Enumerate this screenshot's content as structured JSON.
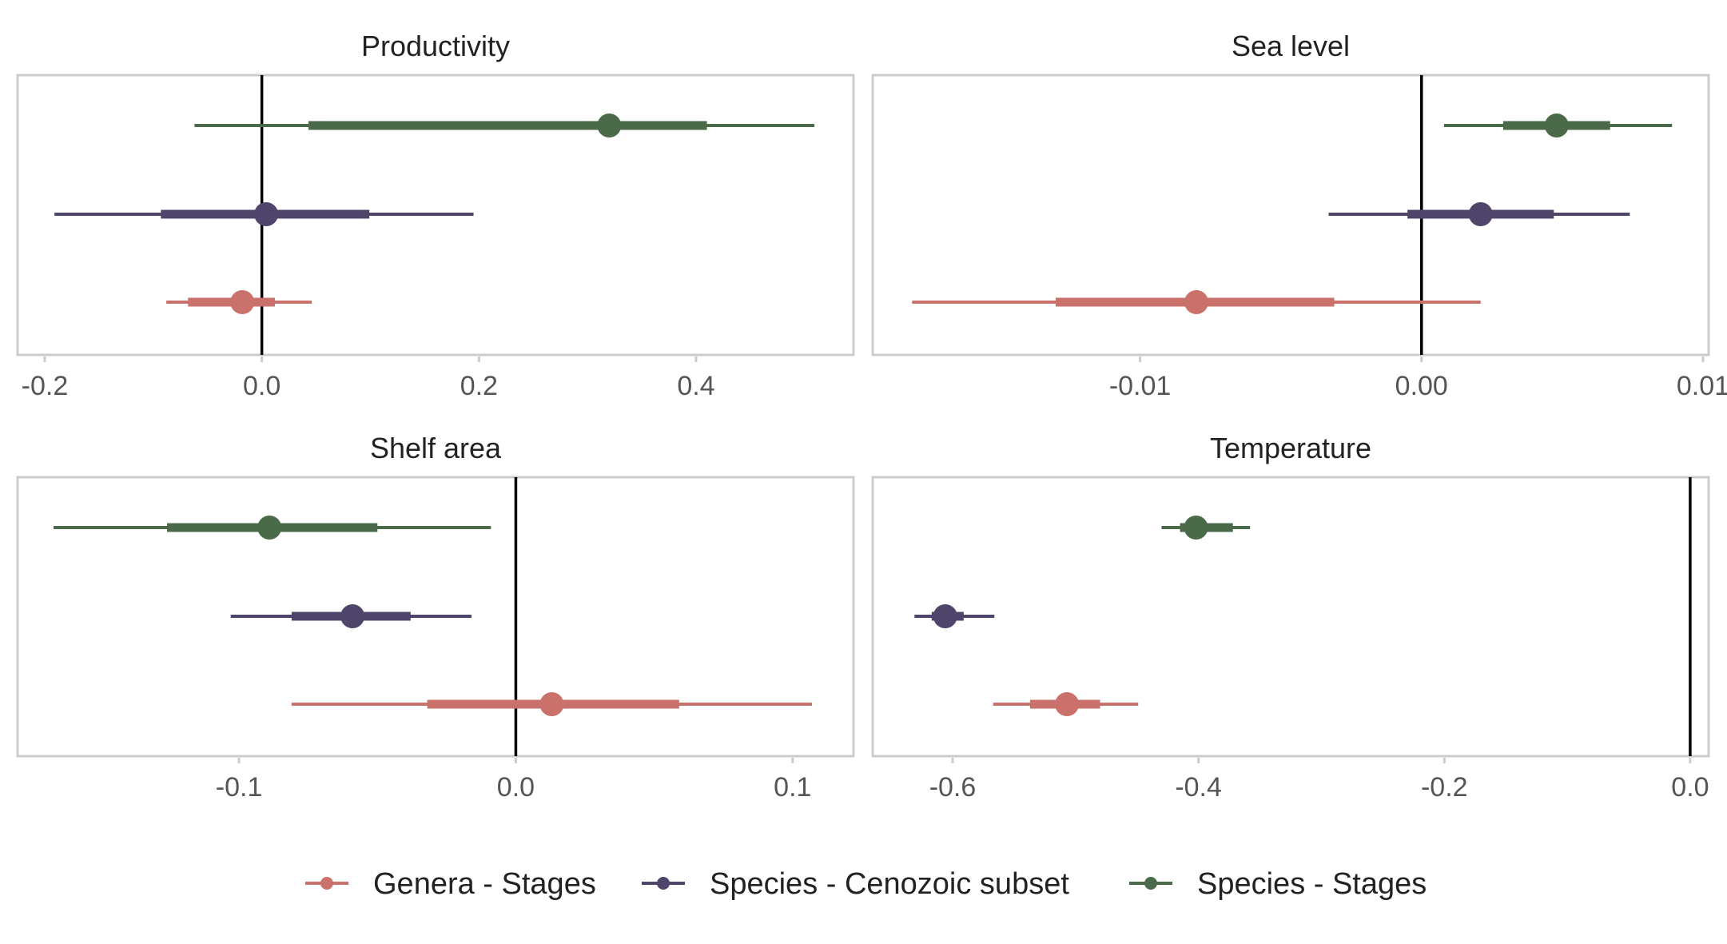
{
  "chart_data": {
    "type": "interval",
    "legend": {
      "position": "bottom",
      "entries": [
        {
          "name": "Genera - Stages",
          "color": "#c9716a"
        },
        {
          "name": "Species - Cenozoic subset",
          "color": "#4f4469"
        },
        {
          "name": "Species - Stages",
          "color": "#4a6a49"
        }
      ]
    },
    "panels": [
      {
        "title": "Productivity",
        "xlim": [
          -0.225,
          0.545
        ],
        "ticks": [
          -0.2,
          0.0,
          0.2,
          0.4
        ],
        "tick_labels": [
          "-0.2",
          "0.0",
          "0.2",
          "0.4"
        ],
        "series": [
          {
            "name": "Species - Stages",
            "estimate": 0.32,
            "inner": [
              0.043,
              0.41
            ],
            "outer": [
              -0.062,
              0.509
            ]
          },
          {
            "name": "Species - Cenozoic subset",
            "estimate": 0.004,
            "inner": [
              -0.093,
              0.099
            ],
            "outer": [
              -0.191,
              0.195
            ]
          },
          {
            "name": "Genera - Stages",
            "estimate": -0.018,
            "inner": [
              -0.068,
              0.012
            ],
            "outer": [
              -0.088,
              0.046
            ]
          }
        ]
      },
      {
        "title": "Sea level",
        "xlim": [
          -0.0195,
          0.0102
        ],
        "ticks": [
          -0.01,
          0.0,
          0.01
        ],
        "tick_labels": [
          "-0.01",
          "0.00",
          "0.01"
        ],
        "series": [
          {
            "name": "Species - Stages",
            "estimate": 0.0048,
            "inner": [
              0.0029,
              0.0067
            ],
            "outer": [
              0.0008,
              0.0089
            ]
          },
          {
            "name": "Species - Cenozoic subset",
            "estimate": 0.0021,
            "inner": [
              -0.0005,
              0.0047
            ],
            "outer": [
              -0.0033,
              0.0074
            ]
          },
          {
            "name": "Genera - Stages",
            "estimate": -0.008,
            "inner": [
              -0.013,
              -0.0031
            ],
            "outer": [
              -0.0181,
              0.0021
            ]
          }
        ]
      },
      {
        "title": "Shelf area",
        "xlim": [
          -0.18,
          0.122
        ],
        "ticks": [
          -0.1,
          0.0,
          0.1
        ],
        "tick_labels": [
          "-0.1",
          "0.0",
          "0.1"
        ],
        "series": [
          {
            "name": "Species - Stages",
            "estimate": -0.089,
            "inner": [
              -0.126,
              -0.05
            ],
            "outer": [
              -0.167,
              -0.009
            ]
          },
          {
            "name": "Species - Cenozoic subset",
            "estimate": -0.059,
            "inner": [
              -0.081,
              -0.038
            ],
            "outer": [
              -0.103,
              -0.016
            ]
          },
          {
            "name": "Genera - Stages",
            "estimate": 0.013,
            "inner": [
              -0.032,
              0.059
            ],
            "outer": [
              -0.081,
              0.107
            ]
          }
        ]
      },
      {
        "title": "Temperature",
        "xlim": [
          -0.665,
          0.015
        ],
        "ticks": [
          -0.6,
          -0.4,
          -0.2,
          0.0
        ],
        "tick_labels": [
          "-0.6",
          "-0.4",
          "-0.2",
          "0.0"
        ],
        "series": [
          {
            "name": "Species - Stages",
            "estimate": -0.402,
            "inner": [
              -0.415,
              -0.372
            ],
            "outer": [
              -0.43,
              -0.358
            ]
          },
          {
            "name": "Species - Cenozoic subset",
            "estimate": -0.606,
            "inner": [
              -0.617,
              -0.591
            ],
            "outer": [
              -0.631,
              -0.566
            ]
          },
          {
            "name": "Genera - Stages",
            "estimate": -0.507,
            "inner": [
              -0.537,
              -0.48
            ],
            "outer": [
              -0.567,
              -0.449
            ]
          }
        ]
      }
    ]
  }
}
